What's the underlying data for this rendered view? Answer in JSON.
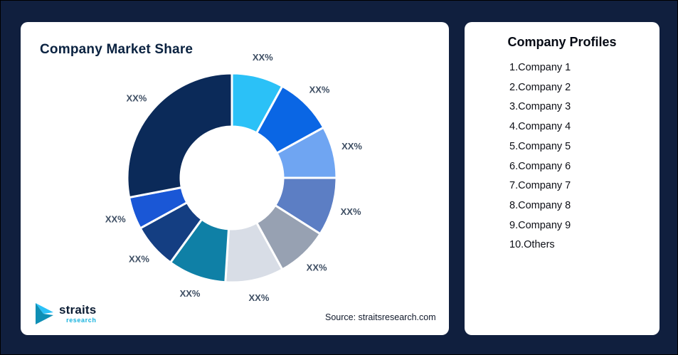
{
  "page": {
    "bg_color": "#101F3E"
  },
  "market_share_card": {
    "title": "Company Market Share",
    "source": "Source: straitsresearch.com",
    "logo": {
      "brand": "straits",
      "sub": "research"
    }
  },
  "profiles_card": {
    "title": "Company Profiles",
    "items": [
      "1.Company 1",
      "2.Company 2",
      "3.Company 3",
      "4.Company 4",
      "5.Company 5",
      "6.Company 6",
      "7.Company 7",
      "8.Company 8",
      "9.Company 9",
      "10.Others"
    ]
  },
  "chart_data": {
    "type": "pie",
    "subtype": "donut",
    "title": "Company Market Share",
    "categories": [
      "Company 1",
      "Company 2",
      "Company 3",
      "Company 4",
      "Company 5",
      "Company 6",
      "Company 7",
      "Company 8",
      "Company 9",
      "Others"
    ],
    "values": [
      8,
      9,
      8,
      9,
      8,
      9,
      9,
      7,
      5,
      28
    ],
    "value_labels": [
      "XX%",
      "XX%",
      "XX%",
      "XX%",
      "XX%",
      "XX%",
      "XX%",
      "XX%",
      "XX%",
      "XX%"
    ],
    "colors": [
      "#2BC1F7",
      "#0A66E4",
      "#6FA5F2",
      "#5C7EC4",
      "#97A1B2",
      "#D8DDE6",
      "#0F80A6",
      "#143E82",
      "#1A57D6",
      "#0B2A59"
    ],
    "start_angle": "top",
    "direction": "clockwise",
    "inner_radius_ratio": 0.49,
    "legend": "none"
  }
}
